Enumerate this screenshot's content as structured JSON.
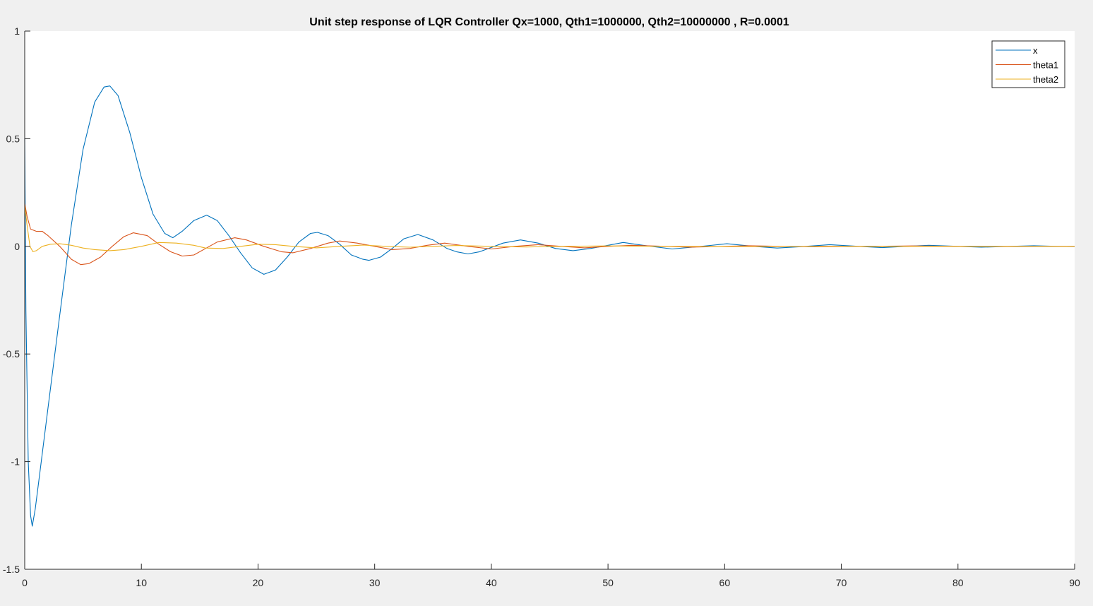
{
  "chart_data": {
    "type": "line",
    "title": "Unit step response of LQR Controller Qx=1000, Qth1=1000000, Qth2=10000000 , R=0.0001",
    "xlabel": "",
    "ylabel": "",
    "xlim": [
      0,
      90
    ],
    "ylim": [
      -1.5,
      1
    ],
    "xticks": [
      0,
      10,
      20,
      30,
      40,
      50,
      60,
      70,
      80,
      90
    ],
    "xtick_labels": [
      "0",
      "10",
      "20",
      "30",
      "40",
      "50",
      "60",
      "70",
      "80",
      "90"
    ],
    "yticks": [
      1,
      0.5,
      0,
      -0.5,
      -1,
      -1.5
    ],
    "ytick_labels": [
      "1",
      "0.5",
      "0",
      "-0.5",
      "-1",
      "-1.5"
    ],
    "grid": false,
    "legend_position": "top-right",
    "series": [
      {
        "name": "x",
        "color": "#0072BD",
        "points": [
          [
            0,
            0.5
          ],
          [
            0.1,
            -0.3
          ],
          [
            0.3,
            -1.0
          ],
          [
            0.5,
            -1.25
          ],
          [
            0.65,
            -1.3
          ],
          [
            0.9,
            -1.22
          ],
          [
            1.3,
            -1.05
          ],
          [
            2,
            -0.75
          ],
          [
            3,
            -0.32
          ],
          [
            4,
            0.1
          ],
          [
            5,
            0.45
          ],
          [
            6,
            0.67
          ],
          [
            6.8,
            0.74
          ],
          [
            7.3,
            0.745
          ],
          [
            8,
            0.7
          ],
          [
            9,
            0.53
          ],
          [
            10,
            0.32
          ],
          [
            11,
            0.15
          ],
          [
            12,
            0.06
          ],
          [
            12.7,
            0.04
          ],
          [
            13.5,
            0.07
          ],
          [
            14.5,
            0.12
          ],
          [
            15.6,
            0.145
          ],
          [
            16.5,
            0.12
          ],
          [
            17.5,
            0.05
          ],
          [
            18.5,
            -0.03
          ],
          [
            19.5,
            -0.1
          ],
          [
            20.5,
            -0.13
          ],
          [
            21.5,
            -0.11
          ],
          [
            22.5,
            -0.05
          ],
          [
            23.5,
            0.02
          ],
          [
            24.5,
            0.06
          ],
          [
            25.1,
            0.065
          ],
          [
            26,
            0.05
          ],
          [
            27,
            0.01
          ],
          [
            28,
            -0.04
          ],
          [
            29,
            -0.06
          ],
          [
            29.5,
            -0.065
          ],
          [
            30.5,
            -0.05
          ],
          [
            31.5,
            -0.01
          ],
          [
            32.5,
            0.035
          ],
          [
            33.7,
            0.055
          ],
          [
            35,
            0.03
          ],
          [
            36.2,
            -0.01
          ],
          [
            37,
            -0.025
          ],
          [
            38,
            -0.035
          ],
          [
            39,
            -0.025
          ],
          [
            40,
            -0.005
          ],
          [
            41,
            0.015
          ],
          [
            42.5,
            0.03
          ],
          [
            44,
            0.015
          ],
          [
            45.5,
            -0.01
          ],
          [
            47,
            -0.02
          ],
          [
            48.5,
            -0.01
          ],
          [
            50,
            0.005
          ],
          [
            51.3,
            0.018
          ],
          [
            53,
            0.005
          ],
          [
            55.5,
            -0.012
          ],
          [
            58,
            0.0
          ],
          [
            60.2,
            0.012
          ],
          [
            62.5,
            0.0
          ],
          [
            64.5,
            -0.008
          ],
          [
            67,
            0.0
          ],
          [
            69,
            0.008
          ],
          [
            71.5,
            0.0
          ],
          [
            73.5,
            -0.006
          ],
          [
            75.5,
            0.0
          ],
          [
            77.5,
            0.005
          ],
          [
            80,
            0.0
          ],
          [
            82,
            -0.004
          ],
          [
            84.5,
            0.0
          ],
          [
            86.5,
            0.003
          ],
          [
            88.5,
            0.0
          ],
          [
            90,
            -0.001
          ]
        ]
      },
      {
        "name": "theta1",
        "color": "#D95319",
        "points": [
          [
            0,
            0.2
          ],
          [
            0.2,
            0.14
          ],
          [
            0.5,
            0.08
          ],
          [
            1,
            0.07
          ],
          [
            1.5,
            0.07
          ],
          [
            2,
            0.05
          ],
          [
            3,
            0.0
          ],
          [
            4,
            -0.06
          ],
          [
            4.8,
            -0.085
          ],
          [
            5.5,
            -0.08
          ],
          [
            6.5,
            -0.05
          ],
          [
            7.5,
            0.0
          ],
          [
            8.5,
            0.045
          ],
          [
            9.3,
            0.063
          ],
          [
            10.5,
            0.05
          ],
          [
            11.5,
            0.01
          ],
          [
            12.5,
            -0.025
          ],
          [
            13.5,
            -0.045
          ],
          [
            14.5,
            -0.04
          ],
          [
            15.5,
            -0.01
          ],
          [
            16.5,
            0.02
          ],
          [
            18,
            0.04
          ],
          [
            19,
            0.03
          ],
          [
            20.5,
            0.0
          ],
          [
            22,
            -0.025
          ],
          [
            23,
            -0.03
          ],
          [
            24.5,
            -0.01
          ],
          [
            26,
            0.015
          ],
          [
            27,
            0.025
          ],
          [
            28.5,
            0.015
          ],
          [
            30,
            0.0
          ],
          [
            31.5,
            -0.015
          ],
          [
            33,
            -0.01
          ],
          [
            34.5,
            0.005
          ],
          [
            36,
            0.015
          ],
          [
            38,
            0.0
          ],
          [
            40,
            -0.012
          ],
          [
            42,
            0.0
          ],
          [
            44,
            0.008
          ],
          [
            46,
            0.0
          ],
          [
            48,
            -0.007
          ],
          [
            50,
            0.0
          ],
          [
            52,
            0.005
          ],
          [
            55,
            0.0
          ],
          [
            57,
            -0.004
          ],
          [
            60,
            0.0
          ],
          [
            62,
            0.003
          ],
          [
            65,
            0.0
          ],
          [
            68,
            -0.002
          ],
          [
            72,
            0.0
          ],
          [
            76,
            0.002
          ],
          [
            80,
            0.0
          ],
          [
            84,
            -0.001
          ],
          [
            90,
            0.0
          ]
        ]
      },
      {
        "name": "theta2",
        "color": "#EDB120",
        "points": [
          [
            0,
            0.19
          ],
          [
            0.2,
            0.1
          ],
          [
            0.45,
            0.0
          ],
          [
            0.7,
            -0.025
          ],
          [
            1.0,
            -0.02
          ],
          [
            1.5,
            0.0
          ],
          [
            2.2,
            0.01
          ],
          [
            3,
            0.012
          ],
          [
            4,
            0.005
          ],
          [
            5,
            -0.008
          ],
          [
            6,
            -0.015
          ],
          [
            7.3,
            -0.02
          ],
          [
            8.5,
            -0.015
          ],
          [
            10,
            0.0
          ],
          [
            11.5,
            0.018
          ],
          [
            13,
            0.015
          ],
          [
            14.5,
            0.005
          ],
          [
            15.5,
            -0.008
          ],
          [
            17,
            -0.01
          ],
          [
            18.5,
            0.0
          ],
          [
            20,
            0.01
          ],
          [
            21.5,
            0.008
          ],
          [
            23,
            0.0
          ],
          [
            25,
            -0.007
          ],
          [
            27,
            0.0
          ],
          [
            29,
            0.006
          ],
          [
            31,
            0.0
          ],
          [
            33,
            -0.004
          ],
          [
            35,
            0.0
          ],
          [
            37,
            0.004
          ],
          [
            40,
            0.0
          ],
          [
            43,
            -0.003
          ],
          [
            46,
            0.0
          ],
          [
            50,
            0.002
          ],
          [
            55,
            0.0
          ],
          [
            60,
            -0.001
          ],
          [
            70,
            0.0
          ],
          [
            80,
            0.0
          ],
          [
            90,
            0.0
          ]
        ]
      }
    ]
  }
}
